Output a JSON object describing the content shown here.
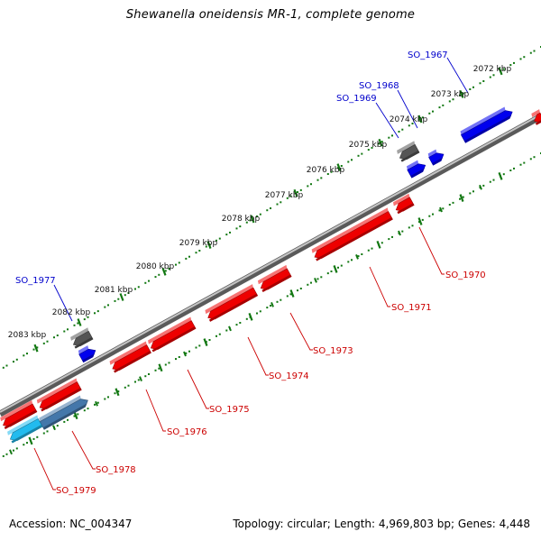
{
  "title": "Shewanella oneidensis MR-1, complete genome",
  "footer": {
    "accession": "Accession: NC_004347",
    "topology": "Topology: circular; Length: 4,969,803 bp; Genes: 4,448"
  },
  "colors": {
    "forward_gene": "#0000ee",
    "reverse_gene": "#ee0000",
    "other_gene": "#555555",
    "highlight_light": "#22bbee",
    "highlight_steel": "#4477aa",
    "backbone": "#888888",
    "ticks": "#117711",
    "forward_label": "#0000cc",
    "reverse_label": "#cc0000"
  },
  "scale": {
    "start_kbp": 2072,
    "end_kbp": 2083,
    "labels": [
      "2072 kbp",
      "2073 kbp",
      "2074 kbp",
      "2075 kbp",
      "2076 kbp",
      "2077 kbp",
      "2078 kbp",
      "2079 kbp",
      "2080 kbp",
      "2081 kbp",
      "2082 kbp",
      "2083 kbp"
    ]
  },
  "genes_forward": [
    {
      "label": "SO_1967",
      "color": "#0000ee"
    },
    {
      "label": "SO_1968",
      "color": "#0000ee"
    },
    {
      "label": "SO_1969",
      "color": "#555555"
    },
    {
      "label": "SO_1977",
      "color": "#555555"
    }
  ],
  "genes_forward_unlabeled": [
    {
      "color": "#0000ee"
    },
    {
      "color": "#0000ee"
    }
  ],
  "genes_reverse": [
    {
      "label": "SO_1970",
      "color": "#ee0000"
    },
    {
      "label": "SO_1971",
      "color": "#ee0000"
    },
    {
      "label": "SO_1973",
      "color": "#ee0000"
    },
    {
      "label": "SO_1974",
      "color": "#ee0000"
    },
    {
      "label": "SO_1975",
      "color": "#ee0000"
    },
    {
      "label": "SO_1976",
      "color": "#ee0000"
    },
    {
      "label": "SO_1978",
      "color": "#4477aa"
    },
    {
      "label": "SO_1979",
      "color": "#22bbee"
    }
  ],
  "genes_reverse_unlabeled": [
    {
      "color": "#ee0000"
    },
    {
      "color": "#ee0000"
    },
    {
      "color": "#ee0000"
    }
  ]
}
